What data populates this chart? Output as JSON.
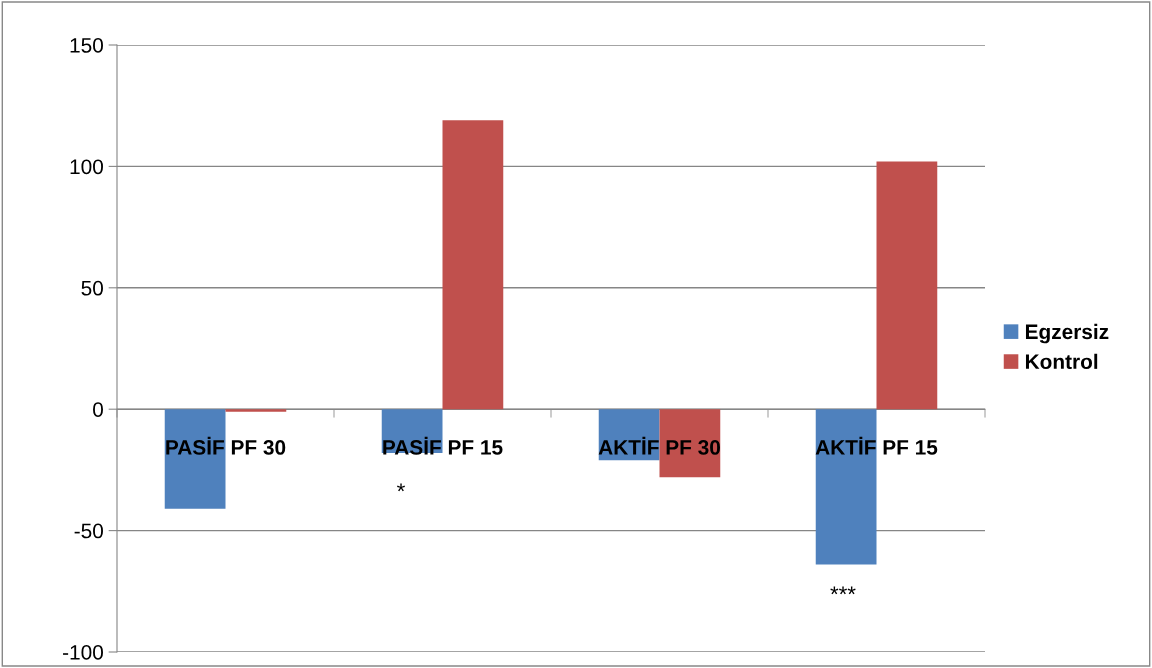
{
  "chart_data": {
    "type": "bar",
    "categories": [
      "PASİF PF 30",
      "PASİF PF 15",
      "AKTİF PF 30",
      "AKTİF PF 15"
    ],
    "series": [
      {
        "name": "Egzersiz",
        "color": "#4f81bd",
        "values": [
          -41,
          -18,
          -21,
          -64
        ]
      },
      {
        "name": "Kontrol",
        "color": "#c0504d",
        "values": [
          -1,
          119,
          -28,
          102
        ]
      }
    ],
    "ylim": [
      -100,
      150
    ],
    "yticks": [
      -100,
      -50,
      0,
      50,
      100,
      150
    ],
    "grid": "y",
    "legend": "right",
    "annotations": [
      "*",
      "***"
    ]
  }
}
